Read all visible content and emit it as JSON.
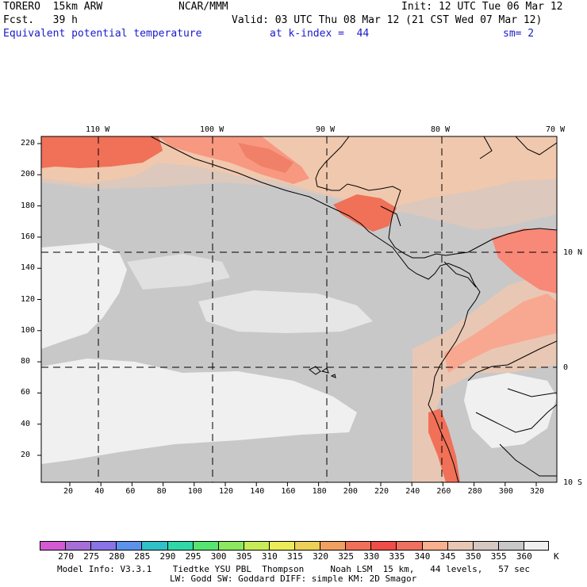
{
  "header": {
    "model": "TORERO",
    "resolution": "15km ARW",
    "org": "NCAR/MMM",
    "init": "Init: 12 UTC Tue 06 Mar 12",
    "fcst_label": "Fcst.",
    "fcst_value": "39 h",
    "valid": "Valid: 03 UTC Thu 08 Mar 12 (21 CST Wed 07 Mar 12)",
    "field": "Equivalent potential temperature",
    "level": "at k-index =  44",
    "smoothing": "sm= 2"
  },
  "map": {
    "lon_labels": [
      "110 W",
      "100 W",
      "90 W",
      "80 W",
      "70 W"
    ],
    "lat_labels": [
      "10 N",
      "0",
      "10 S"
    ],
    "y_ticks": [
      "220",
      "200",
      "180",
      "160",
      "140",
      "120",
      "100",
      "80",
      "60",
      "40",
      "20"
    ],
    "x_ticks": [
      "20",
      "40",
      "60",
      "80",
      "100",
      "120",
      "140",
      "160",
      "180",
      "200",
      "220",
      "240",
      "260",
      "280",
      "300",
      "320"
    ]
  },
  "colorbar": {
    "labels": [
      "270",
      "275",
      "280",
      "285",
      "290",
      "295",
      "300",
      "305",
      "310",
      "315",
      "320",
      "325",
      "330",
      "335",
      "340",
      "345",
      "350",
      "355",
      "360"
    ],
    "unit": "K",
    "colors": [
      "#d45ad4",
      "#a86ed8",
      "#8874e6",
      "#5c92ec",
      "#30c0c8",
      "#30d8a8",
      "#58e470",
      "#8ce860",
      "#c8ec58",
      "#ecec58",
      "#ecd058",
      "#f0a060",
      "#f07058",
      "#f04c48",
      "#f07060",
      "#f8b090",
      "#e8c8b4",
      "#d4c8c0",
      "#c8c8c8",
      "#f0f0f0"
    ]
  },
  "footer": {
    "line1": "Model Info: V3.3.1    Tiedtke YSU PBL  Thompson     Noah LSM  15 km,   44 levels,   57 sec",
    "line2": "LW: Godd SW: Goddard DIFF: simple KM: 2D Smagor"
  }
}
